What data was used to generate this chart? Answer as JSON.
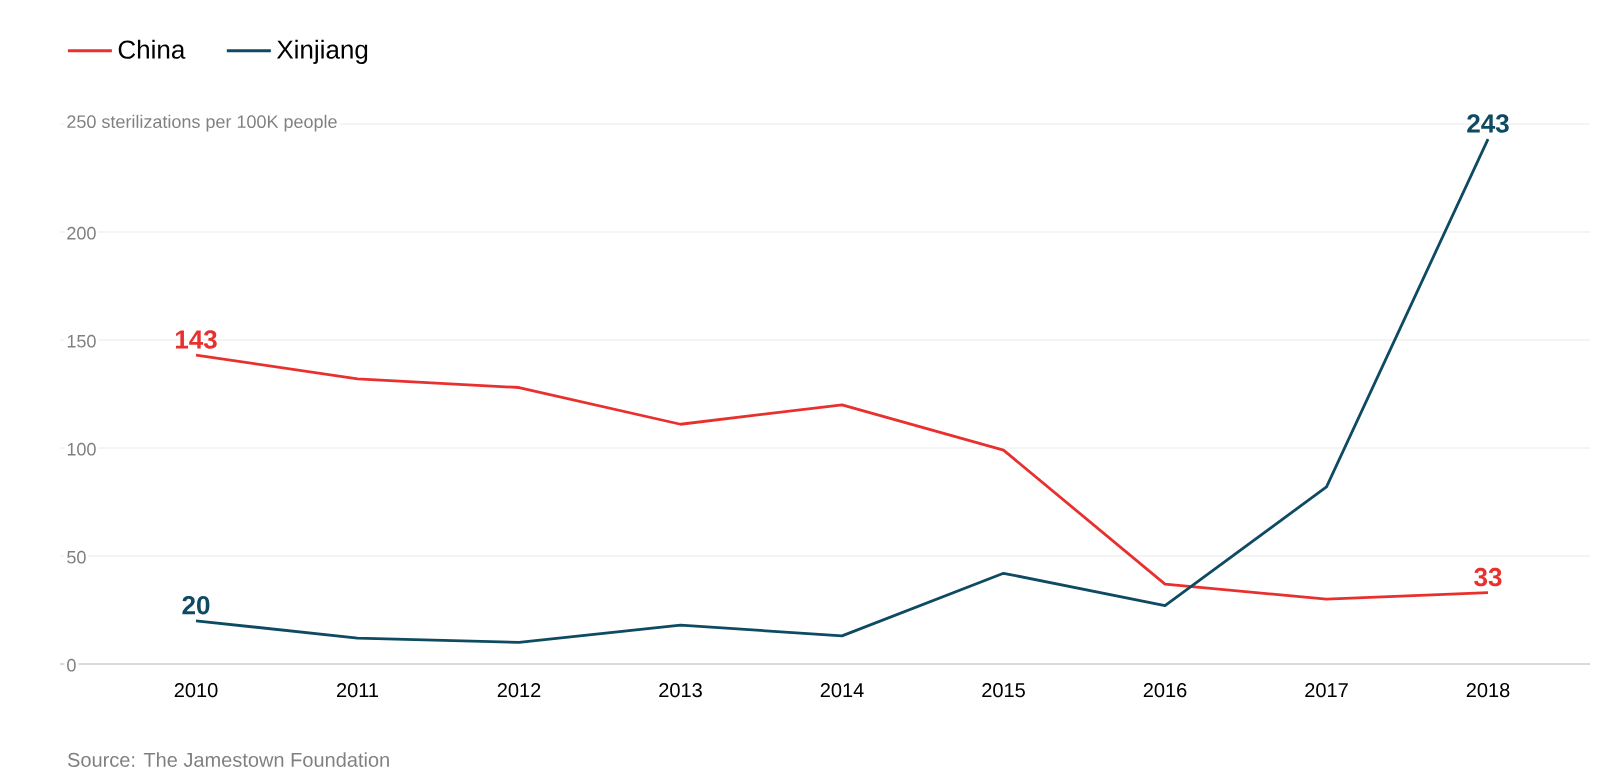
{
  "chart_data": {
    "type": "line",
    "categories": [
      "2010",
      "2011",
      "2012",
      "2013",
      "2014",
      "2015",
      "2016",
      "2017",
      "2018"
    ],
    "series": [
      {
        "name": "China",
        "color": "#e8312f",
        "values": [
          143,
          132,
          128,
          111,
          120,
          99,
          37,
          30,
          33
        ],
        "value_labels": [
          "143",
          null,
          null,
          null,
          null,
          null,
          null,
          null,
          "33"
        ]
      },
      {
        "name": "Xinjiang",
        "color": "#0e4a62",
        "values": [
          20,
          12,
          10,
          18,
          13,
          42,
          27,
          82,
          243
        ],
        "value_labels": [
          "20",
          null,
          null,
          null,
          null,
          null,
          null,
          null,
          "243"
        ]
      }
    ],
    "ylim": [
      0,
      250
    ],
    "yticks": [
      0,
      50,
      100,
      150,
      200,
      {
        "value": 250,
        "label": "250 sterilizations per 100K people"
      }
    ],
    "grid": "y",
    "legend": "top left",
    "marker": "none",
    "line_style": "solid",
    "annotations": [
      "Source: The Jamestown Foundation"
    ]
  }
}
